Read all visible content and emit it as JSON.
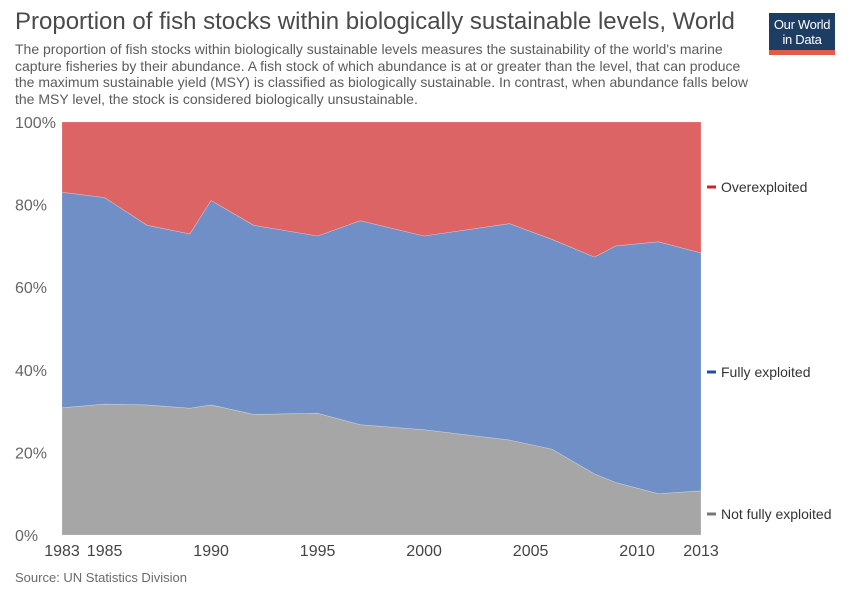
{
  "header": {
    "title": "Proportion of fish stocks within biologically sustainable levels, World",
    "subtitle": "The proportion of fish stocks within biologically sustainable levels measures the sustainability of the world's marine capture fisheries by their abundance. A fish stock of which abundance is at or greater than the level, that can produce the maximum sustainable yield (MSY) is classified as biologically sustainable. In contrast, when abundance falls below the MSY level, the stock is considered biologically unsustainable.",
    "logo_line1": "Our World",
    "logo_line2": "in Data"
  },
  "footer": {
    "source": "Source: UN Statistics Division"
  },
  "colors": {
    "overexploited": "#dc6464",
    "fully_exploited": "#6f8fc6",
    "not_fully_exploited": "#a6a6a6",
    "legend_overexploited": "#c62828",
    "legend_fully_exploited": "#1f4fa8",
    "legend_not_fully_exploited": "#777777"
  },
  "chart_data": {
    "type": "area",
    "stacked": true,
    "x": [
      1983,
      1985,
      1987,
      1989,
      1990,
      1992,
      1995,
      1997,
      2000,
      2004,
      2006,
      2008,
      2009,
      2011,
      2013
    ],
    "series": [
      {
        "name": "Not fully exploited",
        "values": [
          30.8,
          31.7,
          31.5,
          30.7,
          31.5,
          29.2,
          29.5,
          26.7,
          25.5,
          23.0,
          20.8,
          14.8,
          12.7,
          10.0,
          10.7
        ]
      },
      {
        "name": "Fully exploited",
        "values": [
          52.2,
          50.0,
          43.5,
          42.2,
          49.5,
          45.8,
          42.9,
          49.4,
          46.9,
          52.4,
          50.8,
          52.5,
          57.3,
          61.0,
          57.6
        ]
      },
      {
        "name": "Overexploited",
        "values": [
          17.0,
          18.3,
          25.0,
          27.1,
          19.0,
          25.0,
          27.6,
          23.9,
          27.6,
          24.6,
          28.4,
          32.7,
          30.0,
          29.0,
          31.7
        ]
      }
    ],
    "ylim": [
      0,
      100
    ],
    "xlim": [
      1983,
      2013
    ],
    "yticks": [
      "0%",
      "20%",
      "40%",
      "60%",
      "80%",
      "100%"
    ],
    "ytick_values": [
      0,
      20,
      40,
      60,
      80,
      100
    ],
    "xticks": [
      "1983",
      "1985",
      "1990",
      "1995",
      "2000",
      "2005",
      "2010",
      "2013"
    ],
    "xtick_values": [
      1983,
      1985,
      1990,
      1995,
      2000,
      2005,
      2010,
      2013
    ],
    "legend": [
      "Overexploited",
      "Fully exploited",
      "Not fully exploited"
    ],
    "legend_placement": "right",
    "grid": false
  }
}
